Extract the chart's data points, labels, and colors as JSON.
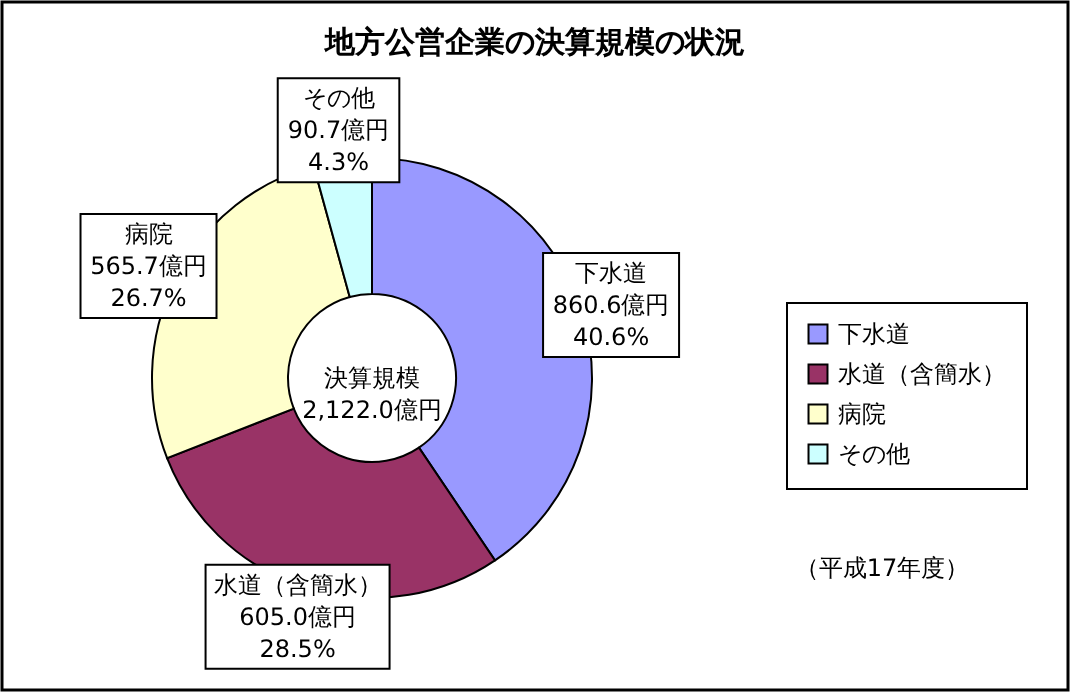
{
  "chart_data": {
    "type": "donut",
    "title": "地方公営企業の決算規模の状況",
    "categories": [
      "下水道",
      "水道（含簡水）",
      "病院",
      "その他"
    ],
    "values": [
      860.6,
      605.0,
      565.7,
      90.7
    ],
    "colors": [
      "#9999ff",
      "#993366",
      "#ffffcc",
      "#ccffff"
    ],
    "value_labels": [
      "860.6億円\n40.6%",
      "605.0億円\n28.5%",
      "565.7億円\n26.7%",
      "90.7億円\n4.3%"
    ],
    "annotations": [
      "決算規模\n2,122.0億円",
      "（平成17年度）"
    ],
    "legend": "right"
  }
}
